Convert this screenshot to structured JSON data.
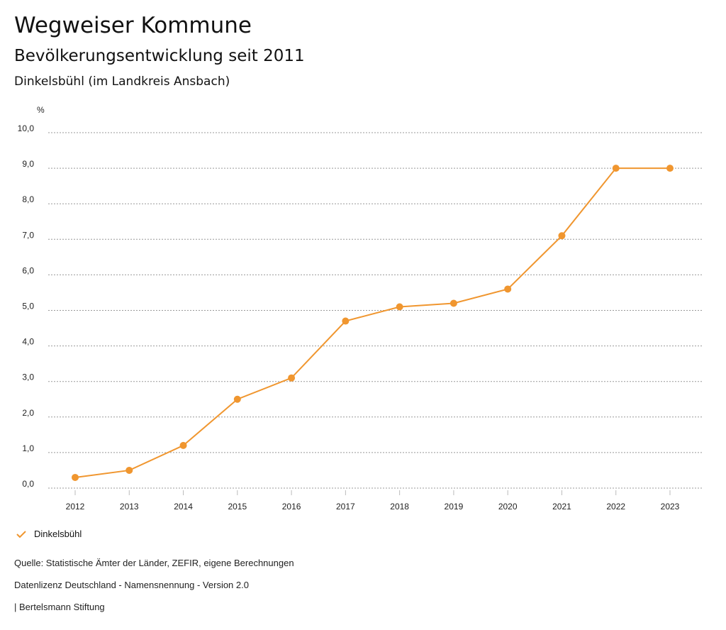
{
  "header": {
    "title": "Wegweiser Kommune",
    "subtitle": "Bevölkerungsentwicklung seit 2011",
    "region": "Dinkelsbühl (im Landkreis Ansbach)"
  },
  "chart_data": {
    "type": "line",
    "ylabel": "%",
    "ylim": [
      0,
      10
    ],
    "yticks": [
      "0,0",
      "1,0",
      "2,0",
      "3,0",
      "4,0",
      "5,0",
      "6,0",
      "7,0",
      "8,0",
      "9,0",
      "10,0"
    ],
    "categories": [
      "2012",
      "2013",
      "2014",
      "2015",
      "2016",
      "2017",
      "2018",
      "2019",
      "2020",
      "2021",
      "2022",
      "2023"
    ],
    "series": [
      {
        "name": "Dinkelsbühl",
        "color": "#f0962f",
        "values": [
          0.3,
          0.5,
          1.2,
          2.5,
          3.1,
          4.7,
          5.1,
          5.2,
          5.6,
          7.1,
          9.0,
          9.0
        ]
      }
    ],
    "grid": true,
    "legend": "bottom-left"
  },
  "footer": {
    "source": "Quelle: Statistische Ämter der Länder, ZEFIR, eigene Berechnungen",
    "license": "Datenlizenz Deutschland - Namensnennung - Version 2.0",
    "publisher": "| Bertelsmann Stiftung"
  }
}
